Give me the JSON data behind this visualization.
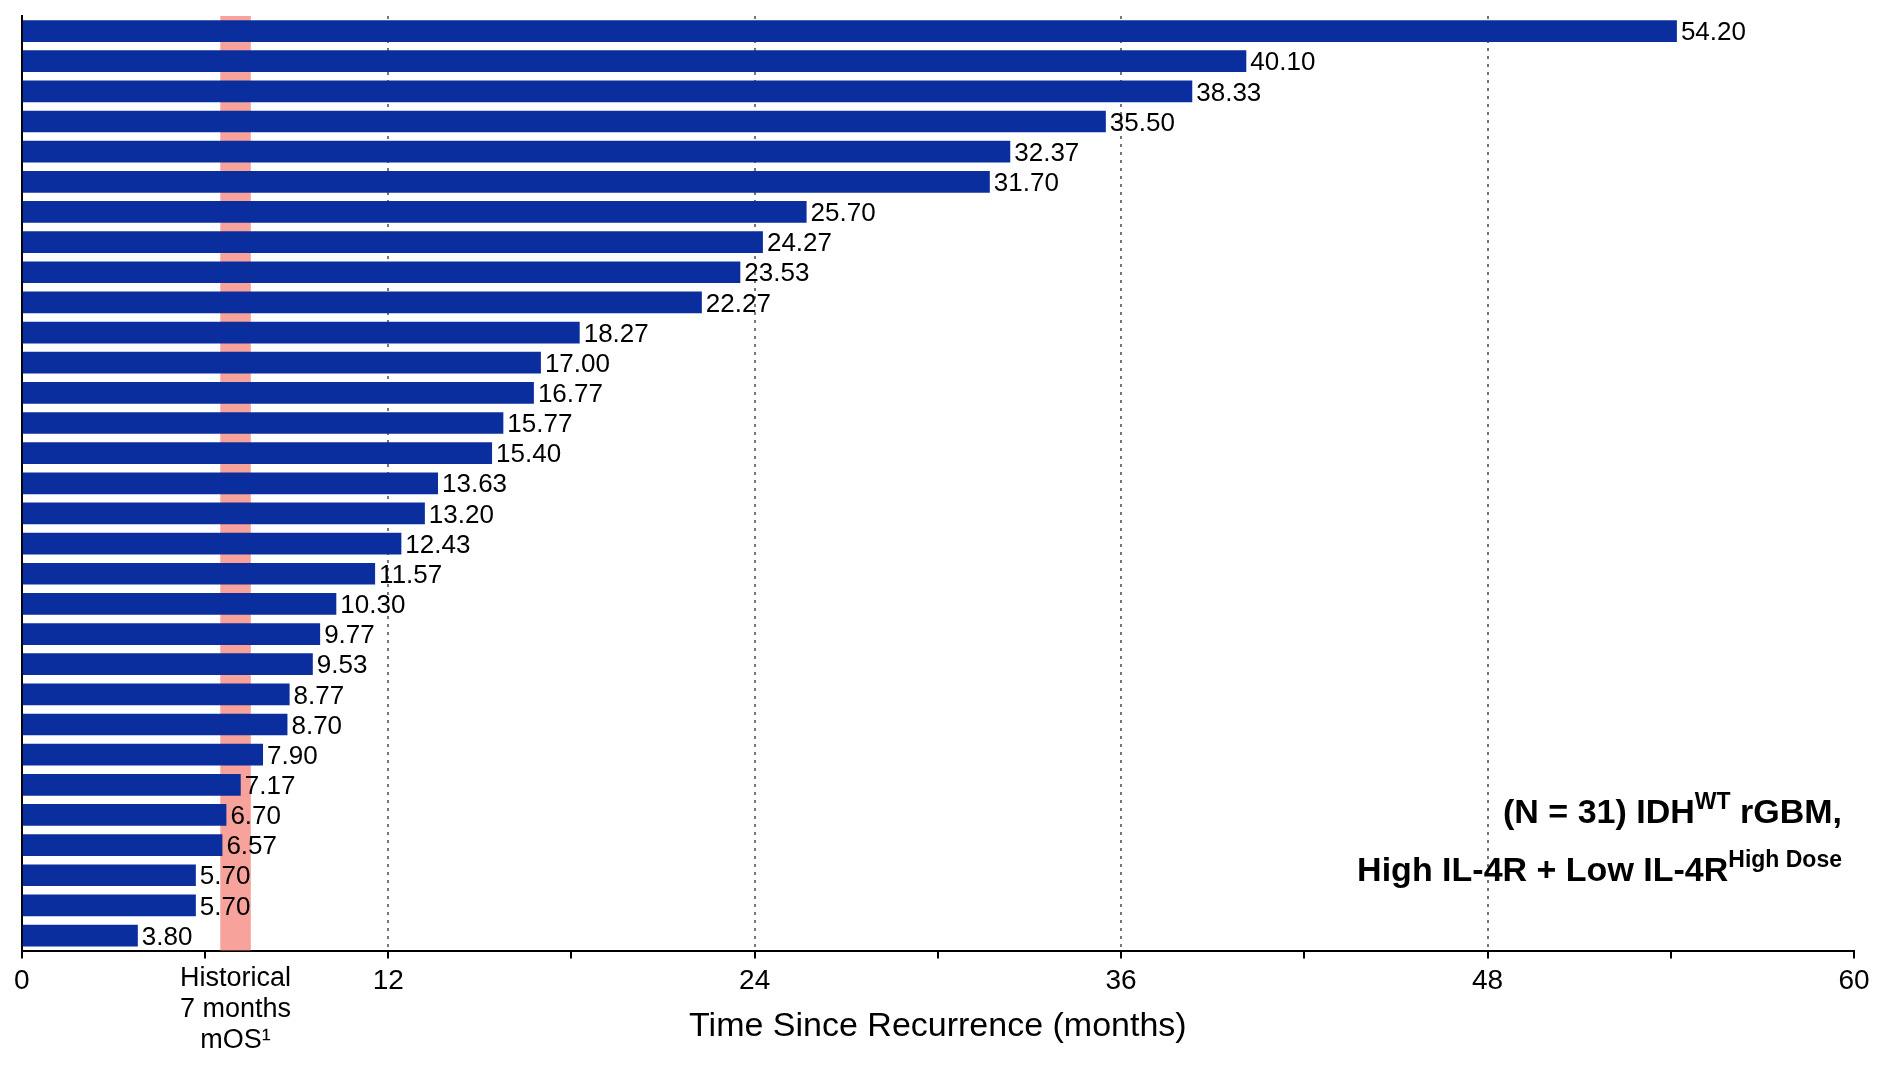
{
  "chart_data": {
    "type": "bar",
    "orientation": "horizontal",
    "xlabel": "Time Since Recurrence (months)",
    "categories": [
      null,
      null,
      null,
      null,
      null,
      null,
      null,
      null,
      null,
      null,
      null,
      null,
      null,
      null,
      null,
      null,
      null,
      null,
      null,
      null,
      null,
      null,
      null,
      null,
      null,
      null,
      null,
      null,
      null,
      null,
      null
    ],
    "values": [
      54.2,
      40.1,
      38.33,
      35.5,
      32.37,
      31.7,
      25.7,
      24.27,
      23.53,
      22.27,
      18.27,
      17.0,
      16.77,
      15.77,
      15.4,
      13.63,
      13.2,
      12.43,
      11.57,
      10.3,
      9.77,
      9.53,
      8.77,
      8.7,
      7.9,
      7.17,
      6.7,
      6.57,
      5.7,
      5.7,
      3.8
    ],
    "value_labels": [
      "54.20",
      "40.10",
      "38.33",
      "35.50",
      "32.37",
      "31.70",
      "25.70",
      "24.27",
      "23.53",
      "22.27",
      "18.27",
      "17.00",
      "16.77",
      "15.77",
      "15.40",
      "13.63",
      "13.20",
      "12.43",
      "11.57",
      "10.30",
      "9.77",
      "9.53",
      "8.77",
      "8.70",
      "7.90",
      "7.17",
      "6.70",
      "6.57",
      "5.70",
      "5.70",
      "3.80"
    ],
    "color": "#0b2e9e",
    "xlim": [
      0,
      60
    ],
    "xticks": [
      0,
      {
        "value": 6,
        "label": null
      },
      12,
      {
        "value": 18,
        "label": null
      },
      24,
      {
        "value": 30,
        "label": null
      },
      36,
      {
        "value": 42,
        "label": null
      },
      48,
      {
        "value": 54,
        "label": null
      },
      60
    ],
    "grid": "x",
    "legend": false,
    "bands": [
      {
        "axis": "x",
        "from": 6.5,
        "to": 7.5,
        "label": "Historical\n7 months\nmOS¹",
        "color": "#f4837a"
      }
    ],
    "annotations": [
      "(N = 31) IDH$^{WT}$ rGBM,",
      "High IL-4R + Low IL-4R$^{High Dose}$"
    ]
  }
}
